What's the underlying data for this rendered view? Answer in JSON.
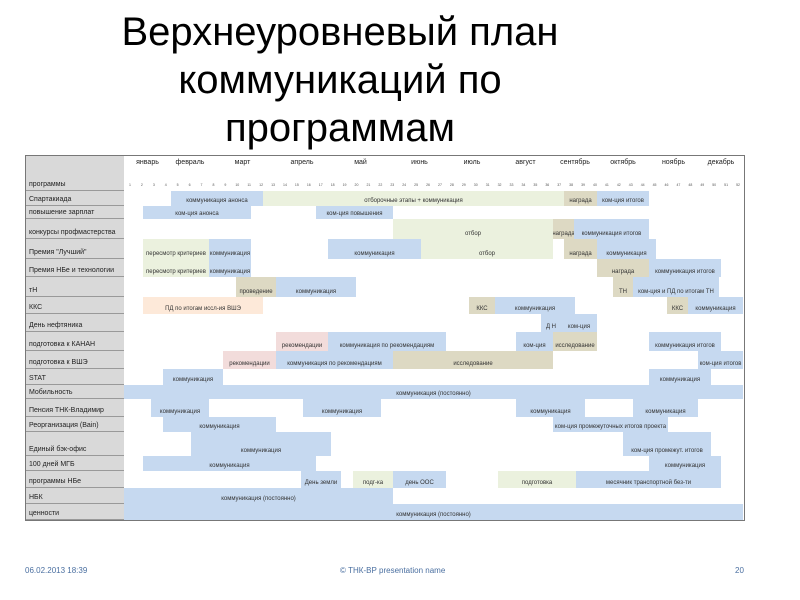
{
  "title": "Верхнеуровневый план коммуникаций по программам",
  "table": {
    "header_label": "программы",
    "months": [
      "январь",
      "февраль",
      "март",
      "апрель",
      "май",
      "июнь",
      "июль",
      "август",
      "сентябрь",
      "октябрь",
      "ноябрь",
      "декабрь"
    ],
    "weeks": [
      1,
      2,
      3,
      4,
      5,
      6,
      7,
      8,
      9,
      10,
      11,
      12,
      13,
      14,
      15,
      16,
      17,
      18,
      19,
      20,
      21,
      22,
      23,
      24,
      25,
      26,
      27,
      28,
      29,
      30,
      31,
      32,
      33,
      34,
      35,
      36,
      37,
      38,
      39,
      40,
      41,
      42,
      43,
      44,
      45,
      46,
      47,
      48,
      49,
      50,
      51,
      52
    ],
    "colors": {
      "blue": "#c6d9f0",
      "green": "#ebf1de",
      "tan": "#ddd9c3",
      "pink": "#f2dcdb",
      "peach": "#fde9d9"
    },
    "rows": [
      {
        "label": "Спартакиада",
        "bars": [
          {
            "label": "коммуникация анонса",
            "color": "blue"
          },
          {
            "label": "отборочные этапы + коммуникация",
            "color": "green"
          },
          {
            "label": "награда",
            "color": "tan"
          },
          {
            "label": "ком-ция итогов",
            "color": "blue"
          }
        ]
      },
      {
        "label": "повышение зарплат",
        "bars": [
          {
            "label": "ком-ция анонса",
            "color": "blue"
          },
          {
            "label": "ком-ция повышения",
            "color": "blue"
          }
        ]
      },
      {
        "label": "конкурсы профмастерства",
        "bars": [
          {
            "label": "отбор",
            "color": "green"
          },
          {
            "label": "награда",
            "color": "tan"
          },
          {
            "label": "коммуникация итогов",
            "color": "blue"
          }
        ]
      },
      {
        "label": "Премия \"Лучший\"",
        "bars": [
          {
            "label": "пересмотр критериев",
            "color": "green"
          },
          {
            "label": "коммуникация",
            "color": "blue"
          },
          {
            "label": "коммуникация",
            "color": "blue"
          },
          {
            "label": "отбор",
            "color": "green"
          },
          {
            "label": "награда",
            "color": "tan"
          },
          {
            "label": "коммуникация",
            "color": "blue"
          }
        ]
      },
      {
        "label": "Премия НБе и технологии",
        "bars": [
          {
            "label": "пересмотр критериев",
            "color": "green"
          },
          {
            "label": "коммуникация",
            "color": "blue"
          },
          {
            "label": "награда",
            "color": "tan"
          },
          {
            "label": "коммуникация итогов",
            "color": "blue"
          }
        ]
      },
      {
        "label": "тН",
        "bars": [
          {
            "label": "проведение",
            "color": "tan"
          },
          {
            "label": "коммуникация",
            "color": "blue"
          },
          {
            "label": "ТН",
            "color": "tan"
          },
          {
            "label": "ком-ция и ПД по итогам ТН",
            "color": "blue"
          }
        ]
      },
      {
        "label": "ККС",
        "bars": [
          {
            "label": "ПД по итогам иссл-ия ВШЭ",
            "color": "peach"
          },
          {
            "label": "ККС",
            "color": "tan"
          },
          {
            "label": "коммуникация",
            "color": "blue"
          },
          {
            "label": "ККС",
            "color": "tan"
          },
          {
            "label": "коммуникация",
            "color": "blue"
          }
        ]
      },
      {
        "label": "День нефтяника",
        "bars": [
          {
            "label": "Д Н",
            "color": "blue"
          },
          {
            "label": "ком-ция",
            "color": "blue"
          }
        ]
      },
      {
        "label": "подготовка к КАНАН",
        "bars": [
          {
            "label": "рекомендации",
            "color": "pink"
          },
          {
            "label": "коммуникация по рекомендациям",
            "color": "blue"
          },
          {
            "label": "ком-ция",
            "color": "blue"
          },
          {
            "label": "исследование",
            "color": "tan"
          },
          {
            "label": "коммуникация итогов",
            "color": "blue"
          }
        ]
      },
      {
        "label": "подготовка к ВШЭ",
        "bars": [
          {
            "label": "рекомендации",
            "color": "pink"
          },
          {
            "label": "коммуникация по рекомендациям",
            "color": "blue"
          },
          {
            "label": "исследование",
            "color": "tan"
          },
          {
            "label": "ком-ция итогов",
            "color": "blue"
          }
        ]
      },
      {
        "label": "STAT",
        "bars": [
          {
            "label": "коммуникация",
            "color": "blue"
          },
          {
            "label": "коммуникация",
            "color": "blue"
          }
        ]
      },
      {
        "label": "Мобильность",
        "bars": [
          {
            "label": "коммуникация (постоянно)",
            "color": "blue"
          }
        ]
      },
      {
        "label": "Пенсия ТНК-Владимир",
        "bars": [
          {
            "label": "коммуникация",
            "color": "blue"
          },
          {
            "label": "коммуникация",
            "color": "blue"
          },
          {
            "label": "коммуникация",
            "color": "blue"
          },
          {
            "label": "коммуникация",
            "color": "blue"
          }
        ]
      },
      {
        "label": "Реорганизация (Bain)",
        "bars": [
          {
            "label": "коммуникация",
            "color": "blue"
          },
          {
            "label": "ком-ция промежуточных итогов проекта",
            "color": "blue"
          }
        ]
      },
      {
        "label": "Единый бэк-офис",
        "bars": [
          {
            "label": "коммуникация",
            "color": "blue"
          },
          {
            "label": "ком-ция промежут. итогов",
            "color": "blue"
          }
        ]
      },
      {
        "label": "100 дней МГБ",
        "bars": [
          {
            "label": "коммуникация",
            "color": "blue"
          },
          {
            "label": "коммуникация",
            "color": "blue"
          }
        ]
      },
      {
        "label": "программы НБе",
        "bars": [
          {
            "label": "День земли",
            "color": "blue"
          },
          {
            "label": "подг-ка",
            "color": "green"
          },
          {
            "label": "день ООС",
            "color": "blue"
          },
          {
            "label": "подготовка",
            "color": "green"
          },
          {
            "label": "месячник транспортной без-ти",
            "color": "blue"
          }
        ]
      },
      {
        "label": "НБК",
        "bars": [
          {
            "label": "коммуникация (постоянно)",
            "color": "blue"
          }
        ]
      },
      {
        "label": "ценности",
        "bars": [
          {
            "label": "коммуникация (постоянно)",
            "color": "blue"
          }
        ]
      }
    ]
  },
  "footer": {
    "date": "06.02.2013 18:39",
    "center": "© ТНК-ВР presentation name",
    "page": "20"
  }
}
